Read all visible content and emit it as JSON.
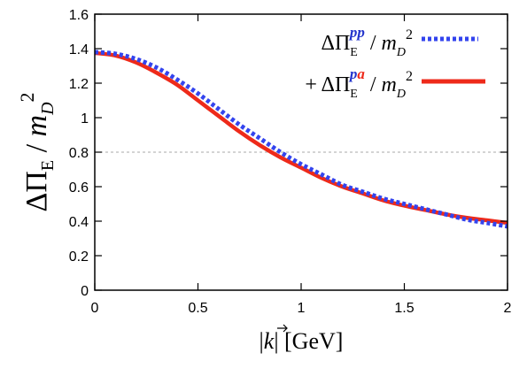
{
  "chart_data": {
    "type": "line",
    "title": "",
    "xlabel": "|k⃗|  [GeV]",
    "ylabel": "ΔΠE / mD2",
    "xlim": [
      0,
      2
    ],
    "ylim": [
      0,
      1.6
    ],
    "x_ticks": [
      "0",
      "0.5",
      "1",
      "1.5",
      "2"
    ],
    "y_ticks": [
      "0",
      "0.2",
      "0.4",
      "0.6",
      "0.8",
      "1",
      "1.2",
      "1.4",
      "1.6"
    ],
    "grid": false,
    "reference_line": {
      "y": 0.8,
      "style": "dashed",
      "color": "#aaaaaa"
    },
    "legend_position": "top-right",
    "series": [
      {
        "name": "ΔΠE^pp / mD^2",
        "color": "#3344ee",
        "style": "dotted",
        "x": [
          0,
          0.1,
          0.2,
          0.3,
          0.4,
          0.5,
          0.6,
          0.7,
          0.8,
          0.9,
          1.0,
          1.1,
          1.2,
          1.3,
          1.4,
          1.5,
          1.6,
          1.7,
          1.8,
          1.9,
          2.0
        ],
        "values": [
          1.38,
          1.37,
          1.34,
          1.29,
          1.22,
          1.14,
          1.05,
          0.96,
          0.88,
          0.8,
          0.73,
          0.67,
          0.61,
          0.57,
          0.53,
          0.5,
          0.47,
          0.44,
          0.41,
          0.39,
          0.37
        ]
      },
      {
        "name": "+ ΔΠE^pa / mD^2",
        "color": "#ee2a1a",
        "style": "solid",
        "x": [
          0,
          0.1,
          0.2,
          0.3,
          0.4,
          0.5,
          0.6,
          0.7,
          0.8,
          0.9,
          1.0,
          1.1,
          1.2,
          1.3,
          1.4,
          1.5,
          1.6,
          1.7,
          1.8,
          1.9,
          2.0
        ],
        "values": [
          1.375,
          1.36,
          1.32,
          1.26,
          1.19,
          1.1,
          1.01,
          0.92,
          0.84,
          0.77,
          0.71,
          0.65,
          0.6,
          0.56,
          0.52,
          0.49,
          0.465,
          0.44,
          0.42,
          0.405,
          0.39
        ]
      }
    ]
  }
}
